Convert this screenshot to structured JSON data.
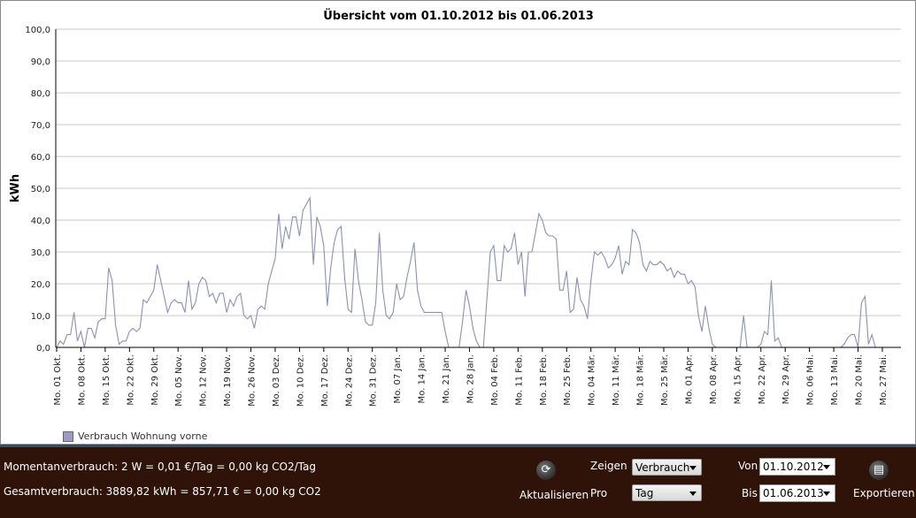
{
  "chart_data": {
    "type": "line",
    "title": "Übersicht vom 01.10.2012 bis 01.06.2013",
    "ylabel": "kWh",
    "xlabel": "",
    "ylim": [
      0,
      100
    ],
    "yticks": [
      "0,0",
      "10,0",
      "20,0",
      "30,0",
      "40,0",
      "50,0",
      "60,0",
      "70,0",
      "80,0",
      "90,0",
      "100,0"
    ],
    "xticks": [
      "Mo. 01 Okt.",
      "Mo. 08 Okt.",
      "Mo. 15 Okt.",
      "Mo. 22 Okt.",
      "Mo. 29 Okt.",
      "Mo. 05 Nov.",
      "Mo. 12 Nov.",
      "Mo. 19 Nov.",
      "Mo. 26 Nov.",
      "Mo. 03 Dez.",
      "Mo. 10 Dez.",
      "Mo. 17 Dez.",
      "Mo. 24 Dez.",
      "Mo. 31 Dez.",
      "Mo. 07 Jan.",
      "Mo. 14 Jan.",
      "Mo. 21 Jan.",
      "Mo. 28 Jan.",
      "Mo. 04 Feb.",
      "Mo. 11 Feb.",
      "Mo. 18 Feb.",
      "Mo. 25 Feb.",
      "Mo. 04 Mär.",
      "Mo. 11 Mär.",
      "Mo. 18 Mär.",
      "Mo. 25 Mär.",
      "Mo. 01 Apr.",
      "Mo. 08 Apr.",
      "Mo. 15 Apr.",
      "Mo. 22 Apr.",
      "Mo. 29 Apr.",
      "Mo. 06 Mai.",
      "Mo. 13 Mai.",
      "Mo. 20 Mai.",
      "Mo. 27 Mai."
    ],
    "grid": true,
    "legend": "bottom-left",
    "series": [
      {
        "name": "Verbrauch  Wohnung vorne",
        "color": "#8c90b4",
        "values": [
          0,
          2,
          1,
          4,
          4,
          11,
          2,
          5,
          0,
          6,
          6,
          3,
          8,
          9,
          9,
          25,
          21,
          7,
          1,
          2,
          2,
          5,
          6,
          5,
          6,
          15,
          14,
          16,
          18,
          26,
          21,
          16,
          11,
          14,
          15,
          14,
          14,
          11,
          21,
          12,
          14,
          20,
          22,
          21,
          16,
          17,
          14,
          17,
          17,
          11,
          15,
          13,
          16,
          17,
          10,
          9,
          10,
          6,
          12,
          13,
          12,
          20,
          24,
          28,
          42,
          31,
          38,
          34,
          41,
          41,
          35,
          43,
          45,
          47,
          26,
          41,
          38,
          32,
          13,
          25,
          33,
          37,
          38,
          22,
          12,
          11,
          31,
          21,
          15,
          8,
          7,
          7,
          14,
          36,
          18,
          10,
          9,
          11,
          20,
          15,
          16,
          22,
          27,
          33,
          18,
          13,
          11,
          11,
          11,
          11,
          11,
          11,
          5,
          0,
          0,
          0,
          0,
          8,
          18,
          13,
          6,
          2,
          0,
          0,
          15,
          30,
          32,
          21,
          21,
          32,
          30,
          31,
          36,
          26,
          30,
          16,
          30,
          30,
          36,
          42,
          40,
          36,
          35,
          35,
          34,
          18,
          18,
          24,
          11,
          12,
          22,
          15,
          13,
          9,
          21,
          30,
          29,
          30,
          28,
          25,
          26,
          28,
          32,
          23,
          27,
          26,
          37,
          36,
          33,
          26,
          24,
          27,
          26,
          26,
          27,
          26,
          24,
          25,
          22,
          24,
          23,
          23,
          20,
          21,
          19,
          10,
          5,
          13,
          6,
          1,
          0,
          0,
          0,
          0,
          0,
          0,
          0,
          0,
          10,
          0,
          0,
          0,
          0,
          1,
          5,
          4,
          21,
          2,
          3,
          0,
          0,
          0,
          0,
          0,
          0,
          0,
          0,
          0,
          0,
          0,
          0,
          0,
          0,
          0,
          0,
          0,
          0,
          1,
          3,
          4,
          4,
          0,
          14,
          16,
          1,
          4,
          0
        ]
      }
    ]
  },
  "legend": {
    "label": "Verbrauch  Wohnung vorne"
  },
  "status": {
    "current": "Momentanverbrauch: 2 W = 0,01 €/Tag = 0,00 kg CO2/Tag",
    "total": "Gesamtverbrauch: 3889,82 kWh = 857,71 € = 0,00 kg CO2"
  },
  "controls": {
    "refresh_label": "Aktualisieren",
    "show_label": "Zeigen",
    "show_value": "Verbrauch",
    "per_label": "Pro",
    "per_value": "Tag",
    "from_label": "Von",
    "from_value": "01.10.2012",
    "to_label": "Bis",
    "to_value": "01.06.2013",
    "export_label": "Exportieren"
  }
}
